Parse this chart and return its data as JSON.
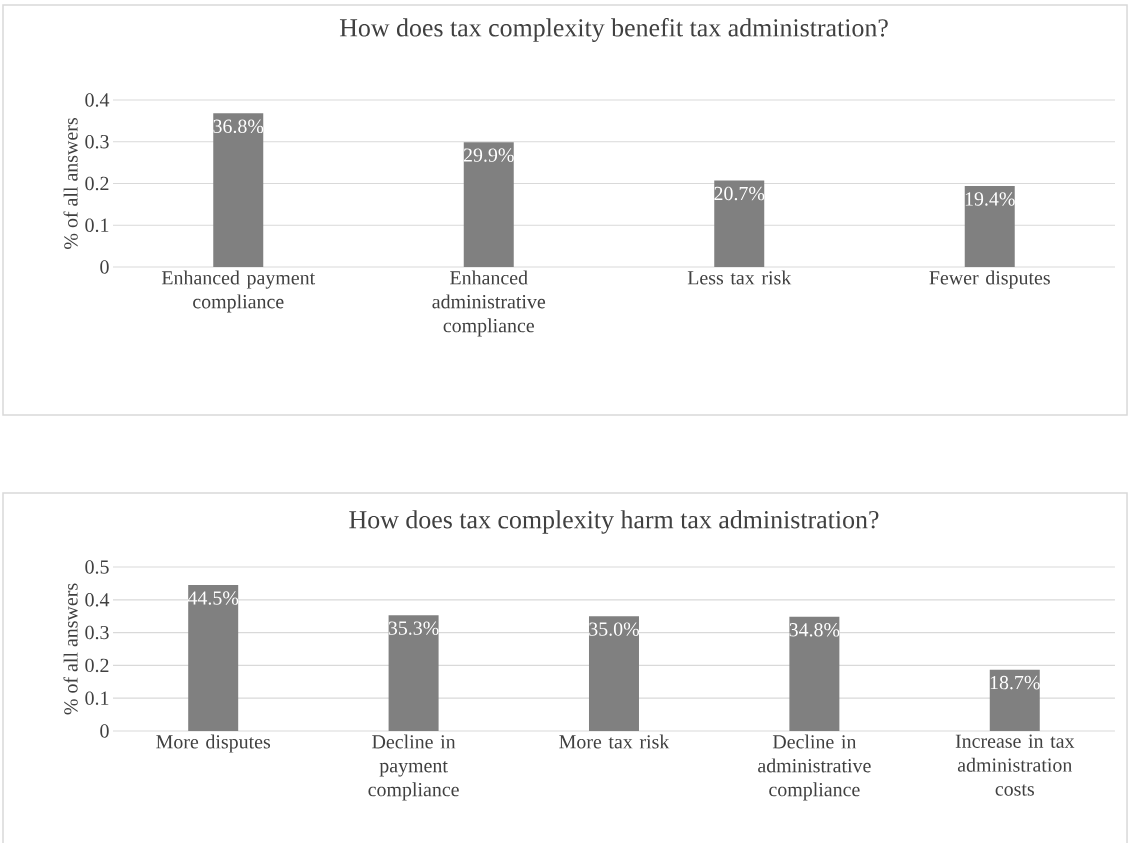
{
  "chart_data": [
    {
      "type": "bar",
      "title": "How does tax complexity benefit tax administration?",
      "ylabel": "% of all answers",
      "categories": [
        "Enhanced payment compliance",
        "Enhanced administrative compliance",
        "Less tax risk",
        "Fewer disputes"
      ],
      "values": [
        0.368,
        0.299,
        0.207,
        0.194
      ],
      "color": "#808080",
      "value_labels": [
        "36.8%",
        "29.9%",
        "20.7%",
        "19.4%"
      ],
      "ylim": [
        0,
        0.4
      ],
      "yticks": [
        0,
        0.1,
        0.2,
        0.3,
        0.4
      ],
      "grid": "y"
    },
    {
      "type": "bar",
      "title": "How does tax complexity harm tax administration?",
      "ylabel": "% of all answers",
      "categories": [
        "More disputes",
        "Decline in payment compliance",
        "More tax risk",
        "Decline in administrative compliance",
        "Increase in tax administration costs"
      ],
      "values": [
        0.445,
        0.353,
        0.35,
        0.348,
        0.187
      ],
      "color": "#808080",
      "value_labels": [
        "44.5%",
        "35.3%",
        "35.0%",
        "34.8%",
        "18.7%"
      ],
      "ylim": [
        0,
        0.5
      ],
      "yticks": [
        0,
        0.1,
        0.2,
        0.3,
        0.4,
        0.5
      ],
      "grid": "y"
    }
  ]
}
